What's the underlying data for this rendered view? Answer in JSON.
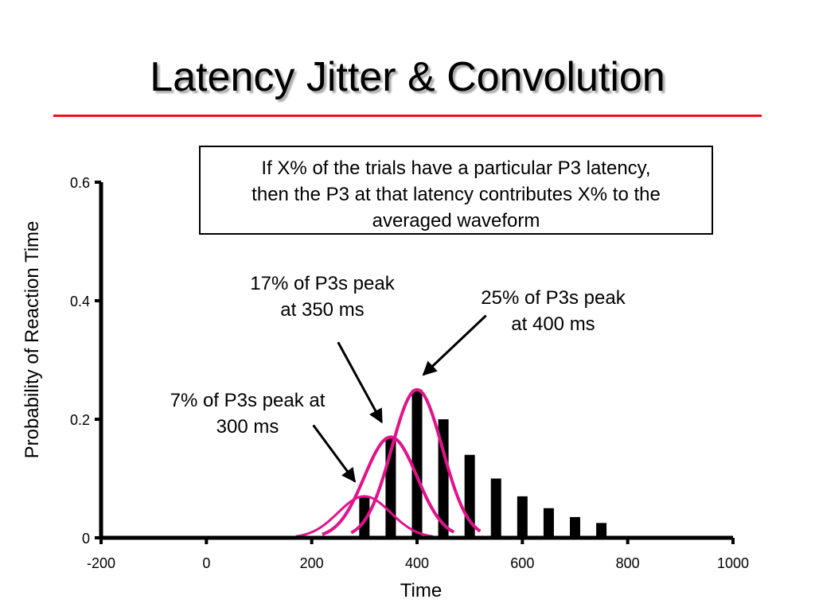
{
  "slide": {
    "title": "Latency Jitter & Convolution",
    "accent_color": "#e8111c"
  },
  "info_box": {
    "lines": [
      "If X% of the trials have a particular P3 latency,",
      "then the P3 at that latency contributes X% to the",
      "averaged waveform"
    ]
  },
  "annotations": {
    "p17": {
      "lines": [
        "17% of P3s peak",
        "at 350 ms"
      ]
    },
    "p25": {
      "lines": [
        "25% of P3s peak",
        "at 400 ms"
      ]
    },
    "p7": {
      "lines": [
        "7% of P3s peak at",
        "300 ms"
      ]
    }
  },
  "chart_data": {
    "type": "bar",
    "xlabel": "Time",
    "ylabel": "Probability of Reaction Time",
    "xlim": [
      -200,
      1000
    ],
    "ylim": [
      0,
      0.6
    ],
    "x_ticks": [
      -200,
      0,
      200,
      400,
      600,
      800,
      1000
    ],
    "x_tick_labels": [
      "-200",
      "0",
      "200",
      "400",
      "600",
      "800",
      "1000"
    ],
    "y_ticks": [
      0,
      0.2,
      0.4,
      0.6
    ],
    "y_tick_labels": [
      "0",
      "0.2",
      "0.4",
      "0.6"
    ],
    "bar_color": "#000000",
    "bars": {
      "x": [
        300,
        350,
        400,
        450,
        500,
        550,
        600,
        650,
        700,
        750
      ],
      "values": [
        0.07,
        0.17,
        0.25,
        0.2,
        0.14,
        0.1,
        0.07,
        0.05,
        0.035,
        0.025
      ]
    },
    "curves": {
      "color": "#e3128c",
      "items": [
        {
          "peak_x": 300,
          "peak_y": 0.07,
          "start_x": 170,
          "end_x": 430
        },
        {
          "peak_x": 350,
          "peak_y": 0.17,
          "start_x": 220,
          "end_x": 470
        },
        {
          "peak_x": 400,
          "peak_y": 0.25,
          "start_x": 275,
          "end_x": 520
        }
      ]
    },
    "arrows": [
      {
        "from": [
          250,
          0.33
        ],
        "to": [
          333,
          0.195
        ]
      },
      {
        "from": [
          531,
          0.375
        ],
        "to": [
          412,
          0.275
        ]
      },
      {
        "from": [
          203,
          0.19
        ],
        "to": [
          282,
          0.095
        ]
      }
    ]
  }
}
